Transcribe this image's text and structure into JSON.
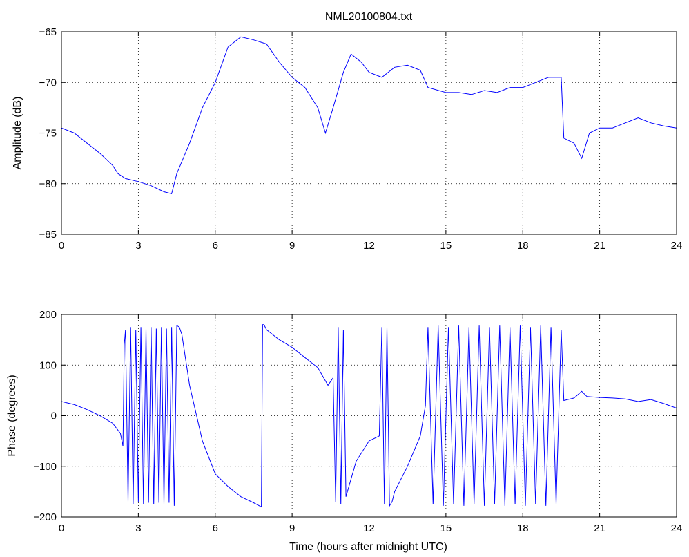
{
  "figure": {
    "title": "NML20100804.txt"
  },
  "chart_data": [
    {
      "type": "line",
      "title": "NML20100804.txt",
      "xlabel": "",
      "ylabel": "Amplitude (dB)",
      "xlim": [
        0,
        24
      ],
      "ylim": [
        -85,
        -65
      ],
      "xticks": [
        0,
        3,
        6,
        9,
        12,
        15,
        18,
        21,
        24
      ],
      "xtick_labels": [
        "0",
        "3",
        "6",
        "9",
        "12",
        "15",
        "18",
        "21",
        "24"
      ],
      "yticks": [
        -85,
        -80,
        -75,
        -70,
        -65
      ],
      "ytick_labels": [
        "−85",
        "−80",
        "−75",
        "−70",
        "−65"
      ],
      "grid": true,
      "series": [
        {
          "color": "#0000ff",
          "x": [
            0,
            0.5,
            1,
            1.5,
            2,
            2.2,
            2.5,
            3,
            3.5,
            4,
            4.3,
            4.5,
            5,
            5.5,
            6,
            6.5,
            7,
            7.5,
            8,
            8.5,
            9,
            9.5,
            10,
            10.3,
            10.6,
            11,
            11.3,
            11.7,
            12,
            12.5,
            13,
            13.5,
            14,
            14.3,
            15,
            15.5,
            16,
            16.5,
            17,
            17.5,
            18,
            18.5,
            19,
            19.5,
            19.6,
            20,
            20.3,
            20.6,
            21,
            21.5,
            22,
            22.5,
            23,
            23.5,
            24
          ],
          "y": [
            -74.5,
            -75.0,
            -76.0,
            -77.0,
            -78.2,
            -79.0,
            -79.5,
            -79.8,
            -80.2,
            -80.8,
            -81.0,
            -79.0,
            -76.0,
            -72.5,
            -70.0,
            -66.5,
            -65.5,
            -65.8,
            -66.2,
            -68.0,
            -69.5,
            -70.5,
            -72.5,
            -75.0,
            -72.5,
            -69.0,
            -67.2,
            -68.0,
            -69.0,
            -69.5,
            -68.5,
            -68.3,
            -68.8,
            -70.5,
            -71.0,
            -71.0,
            -71.2,
            -70.8,
            -71.0,
            -70.5,
            -70.5,
            -70.0,
            -69.5,
            -69.5,
            -75.5,
            -76.0,
            -77.5,
            -75.0,
            -74.5,
            -74.5,
            -74.0,
            -73.5,
            -74.0,
            -74.3,
            -74.5
          ]
        }
      ]
    },
    {
      "type": "line",
      "title": "",
      "xlabel": "Time (hours after midnight UTC)",
      "ylabel": "Phase (degrees)",
      "xlim": [
        0,
        24
      ],
      "ylim": [
        -200,
        200
      ],
      "xticks": [
        0,
        3,
        6,
        9,
        12,
        15,
        18,
        21,
        24
      ],
      "xtick_labels": [
        "0",
        "3",
        "6",
        "9",
        "12",
        "15",
        "18",
        "21",
        "24"
      ],
      "yticks": [
        -200,
        -100,
        0,
        100,
        200
      ],
      "ytick_labels": [
        "−200",
        "−100",
        "0",
        "100",
        "200"
      ],
      "grid": true,
      "series": [
        {
          "color": "#0000ff",
          "x": [
            0,
            0.5,
            1,
            1.5,
            2,
            2.3,
            2.4,
            2.45,
            2.5,
            2.6,
            2.7,
            2.8,
            2.9,
            3.0,
            3.1,
            3.2,
            3.3,
            3.4,
            3.5,
            3.6,
            3.7,
            3.8,
            3.9,
            4.0,
            4.1,
            4.2,
            4.3,
            4.4,
            4.5,
            4.6,
            4.7,
            5.0,
            5.5,
            6.0,
            6.5,
            7.0,
            7.5,
            7.8,
            7.85,
            7.9,
            8.0,
            8.5,
            9.0,
            9.5,
            10.0,
            10.4,
            10.6,
            10.7,
            10.8,
            10.9,
            11.0,
            11.1,
            11.5,
            12.0,
            12.4,
            12.5,
            12.6,
            12.7,
            12.8,
            12.9,
            13.0,
            13.5,
            14.0,
            14.2,
            14.3,
            14.5,
            14.7,
            14.9,
            15.1,
            15.3,
            15.5,
            15.7,
            15.9,
            16.1,
            16.3,
            16.5,
            16.7,
            16.9,
            17.1,
            17.3,
            17.5,
            17.7,
            17.9,
            18.1,
            18.3,
            18.5,
            18.7,
            18.9,
            19.1,
            19.3,
            19.5,
            19.6,
            20.0,
            20.3,
            20.5,
            21.0,
            21.5,
            22.0,
            22.5,
            23.0,
            23.5,
            24.0
          ],
          "y": [
            28,
            22,
            12,
            0,
            -15,
            -35,
            -60,
            140,
            170,
            -170,
            175,
            -175,
            170,
            -170,
            175,
            -175,
            172,
            -172,
            175,
            -175,
            172,
            -172,
            175,
            -175,
            172,
            -172,
            175,
            -178,
            178,
            175,
            160,
            60,
            -50,
            -115,
            -140,
            -160,
            -172,
            -180,
            180,
            180,
            170,
            150,
            135,
            115,
            95,
            60,
            75,
            -170,
            175,
            -175,
            170,
            -160,
            -90,
            -50,
            -40,
            175,
            -175,
            175,
            -178,
            -170,
            -150,
            -100,
            -40,
            20,
            175,
            -175,
            178,
            -178,
            175,
            -175,
            178,
            -178,
            175,
            -175,
            178,
            -178,
            175,
            -175,
            178,
            -178,
            175,
            -175,
            178,
            -178,
            175,
            -175,
            178,
            -178,
            175,
            -175,
            170,
            30,
            35,
            48,
            38,
            36,
            35,
            33,
            28,
            32,
            24,
            15
          ]
        }
      ]
    }
  ]
}
